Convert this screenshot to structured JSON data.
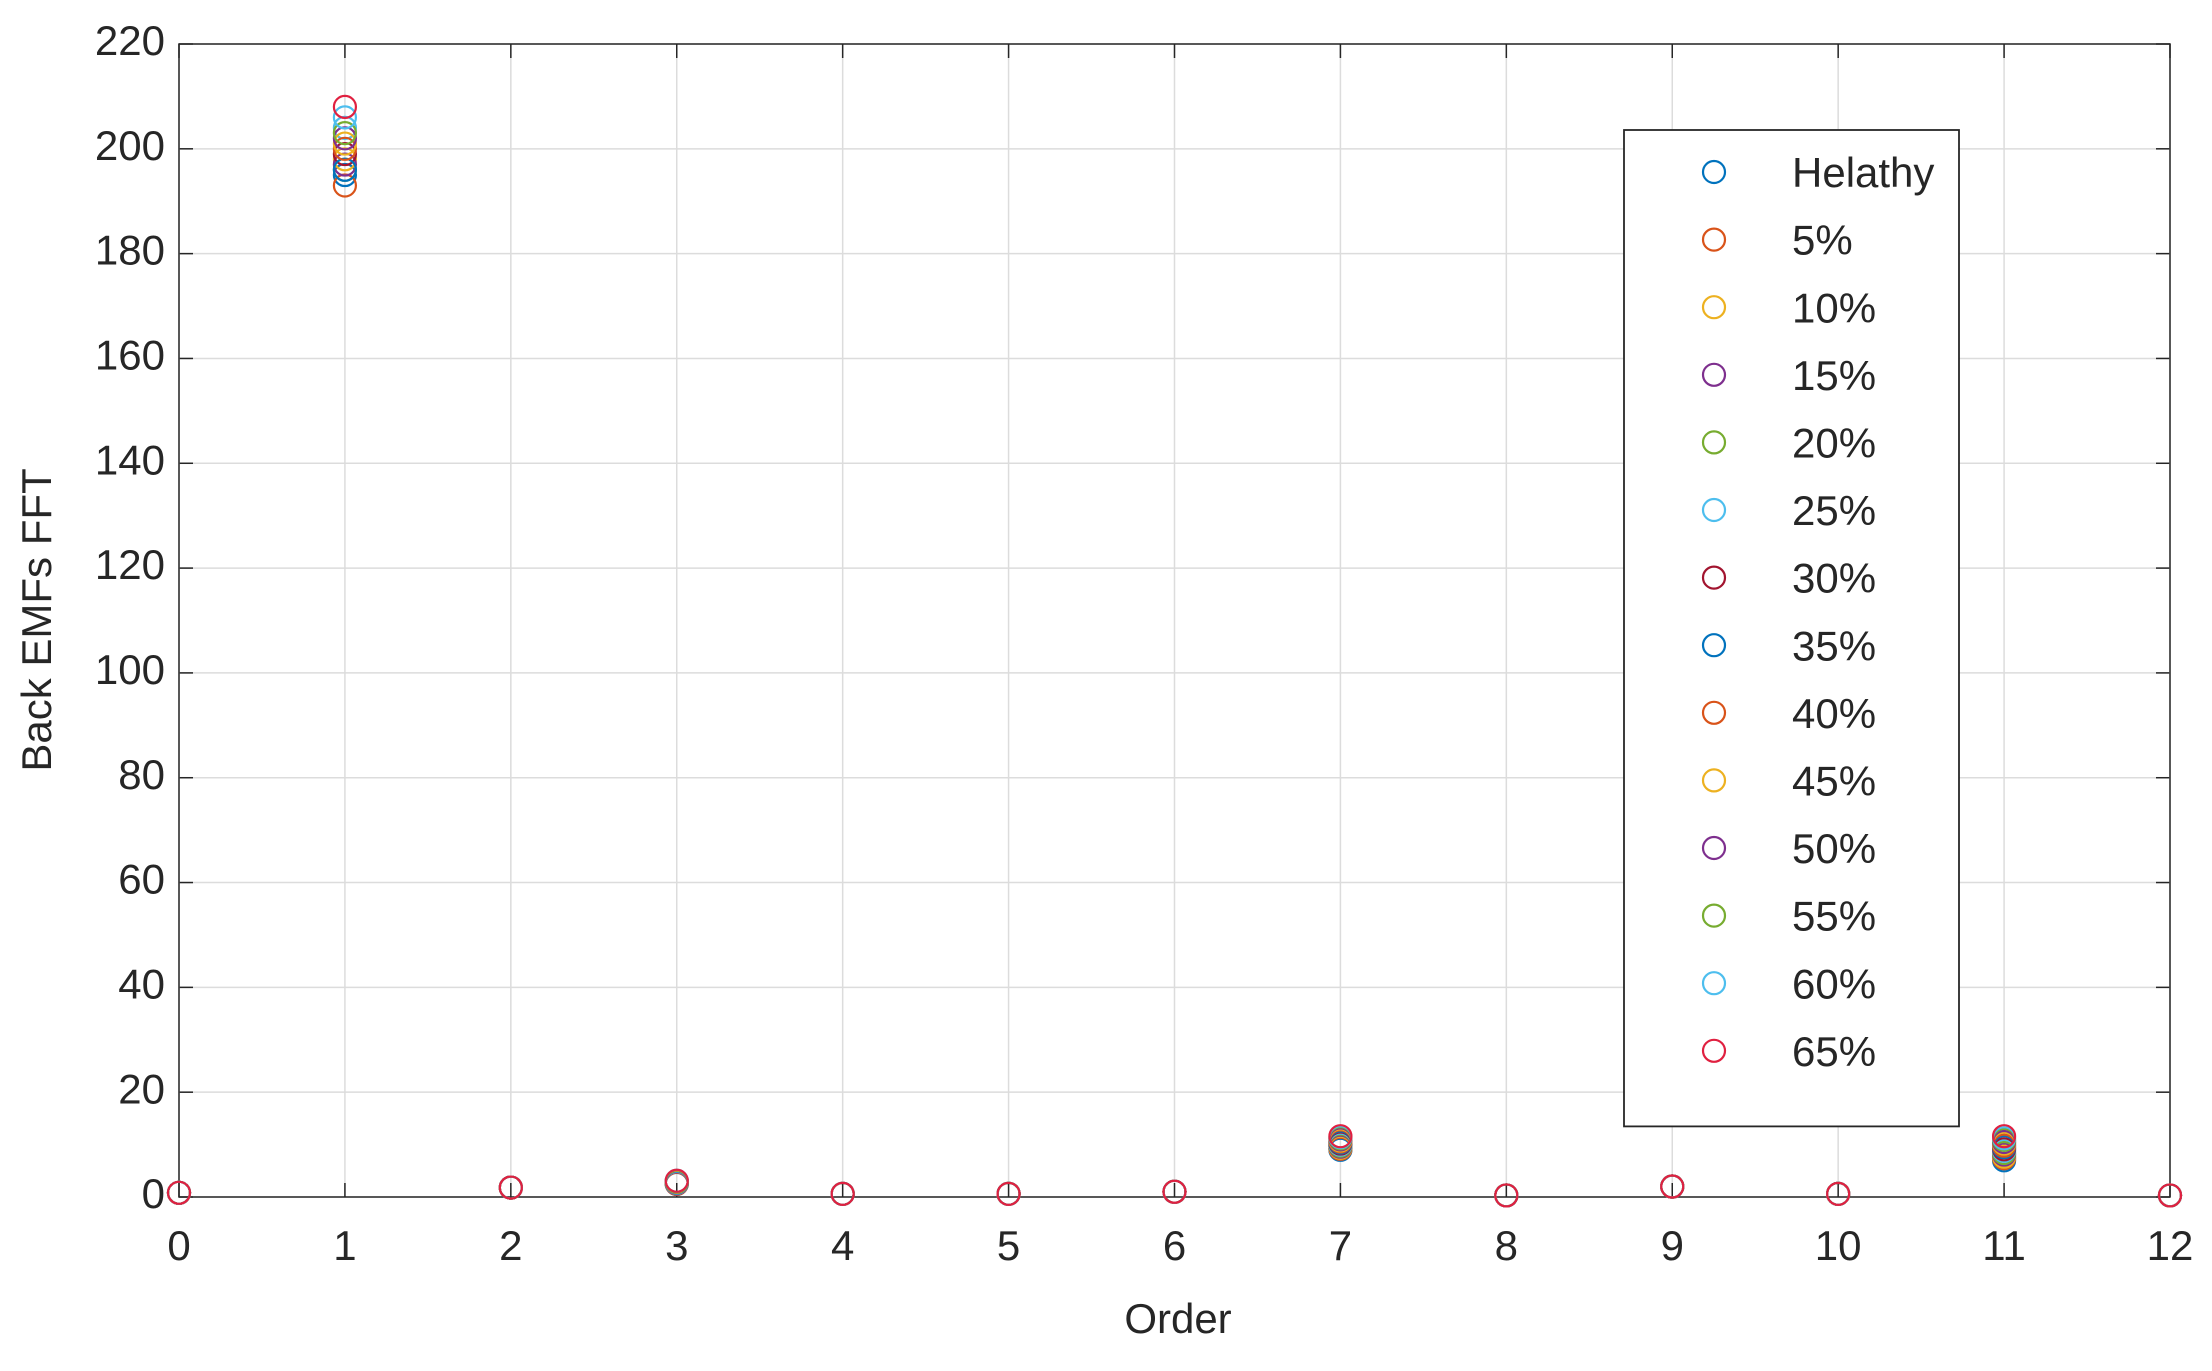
{
  "chart_data": {
    "type": "scatter",
    "xlabel": "Order",
    "ylabel": "Back EMFs FFT",
    "x": [
      0,
      1,
      2,
      3,
      4,
      5,
      6,
      7,
      8,
      9,
      10,
      11,
      12
    ],
    "xlim": [
      0,
      12
    ],
    "xticks": [
      0,
      1,
      2,
      3,
      4,
      5,
      6,
      7,
      8,
      9,
      10,
      11,
      12
    ],
    "ylim": [
      0,
      220
    ],
    "yticks": [
      0,
      20,
      40,
      60,
      80,
      100,
      120,
      140,
      160,
      180,
      200,
      220
    ],
    "grid": true,
    "legend": "northeast",
    "marker": "circle",
    "series": [
      {
        "name": "Helathy",
        "color": "#0072BD",
        "values": [
          0.8,
          195,
          1.8,
          2.5,
          0.6,
          0.6,
          1.0,
          9.0,
          0.3,
          2.0,
          0.6,
          7.0,
          0.3
        ]
      },
      {
        "name": "5%",
        "color": "#D95319",
        "values": [
          0.8,
          193,
          1.8,
          2.5,
          0.6,
          0.6,
          1.0,
          9.2,
          0.3,
          2.0,
          0.6,
          7.4,
          0.3
        ]
      },
      {
        "name": "10%",
        "color": "#EDB120",
        "values": [
          0.8,
          198,
          1.8,
          2.6,
          0.6,
          0.6,
          1.0,
          9.4,
          0.3,
          2.0,
          0.6,
          7.7,
          0.3
        ]
      },
      {
        "name": "15%",
        "color": "#7E2F8E",
        "values": [
          0.8,
          197,
          1.8,
          2.6,
          0.6,
          0.6,
          1.0,
          9.6,
          0.3,
          2.0,
          0.6,
          8.1,
          0.3
        ]
      },
      {
        "name": "20%",
        "color": "#77AC30",
        "values": [
          0.8,
          196,
          1.8,
          2.7,
          0.6,
          0.6,
          1.0,
          9.8,
          0.3,
          2.0,
          0.6,
          8.4,
          0.3
        ]
      },
      {
        "name": "25%",
        "color": "#4DBEEE",
        "values": [
          0.8,
          204,
          1.8,
          2.7,
          0.6,
          0.6,
          1.0,
          10.0,
          0.3,
          2.0,
          0.6,
          8.8,
          0.3
        ]
      },
      {
        "name": "30%",
        "color": "#A2142F",
        "values": [
          0.8,
          199,
          1.8,
          2.8,
          0.6,
          0.6,
          1.0,
          10.2,
          0.3,
          2.0,
          0.6,
          9.1,
          0.3
        ]
      },
      {
        "name": "35%",
        "color": "#0072BD",
        "values": [
          0.8,
          196,
          1.8,
          2.8,
          0.6,
          0.6,
          1.0,
          10.4,
          0.3,
          2.0,
          0.6,
          9.5,
          0.3
        ]
      },
      {
        "name": "40%",
        "color": "#D95319",
        "values": [
          0.8,
          200,
          1.8,
          2.9,
          0.6,
          0.6,
          1.0,
          10.6,
          0.3,
          2.0,
          0.6,
          9.8,
          0.3
        ]
      },
      {
        "name": "45%",
        "color": "#EDB120",
        "values": [
          0.8,
          201,
          1.8,
          2.9,
          0.6,
          0.6,
          1.0,
          10.8,
          0.3,
          2.0,
          0.6,
          10.2,
          0.3
        ]
      },
      {
        "name": "50%",
        "color": "#7E2F8E",
        "values": [
          0.8,
          202,
          1.8,
          3.0,
          0.6,
          0.6,
          1.0,
          11.0,
          0.3,
          2.0,
          0.6,
          10.5,
          0.3
        ]
      },
      {
        "name": "55%",
        "color": "#77AC30",
        "values": [
          0.8,
          203,
          1.8,
          3.0,
          0.6,
          0.6,
          1.0,
          11.2,
          0.3,
          2.0,
          0.6,
          10.9,
          0.3
        ]
      },
      {
        "name": "60%",
        "color": "#4DBEEE",
        "values": [
          0.8,
          206,
          1.8,
          3.1,
          0.6,
          0.6,
          1.0,
          11.4,
          0.3,
          2.0,
          0.6,
          11.2,
          0.3
        ]
      },
      {
        "name": "65%",
        "color": "#E02040",
        "values": [
          0.8,
          208,
          1.8,
          3.1,
          0.6,
          0.6,
          1.0,
          11.6,
          0.3,
          2.0,
          0.6,
          11.6,
          0.3
        ]
      }
    ]
  }
}
